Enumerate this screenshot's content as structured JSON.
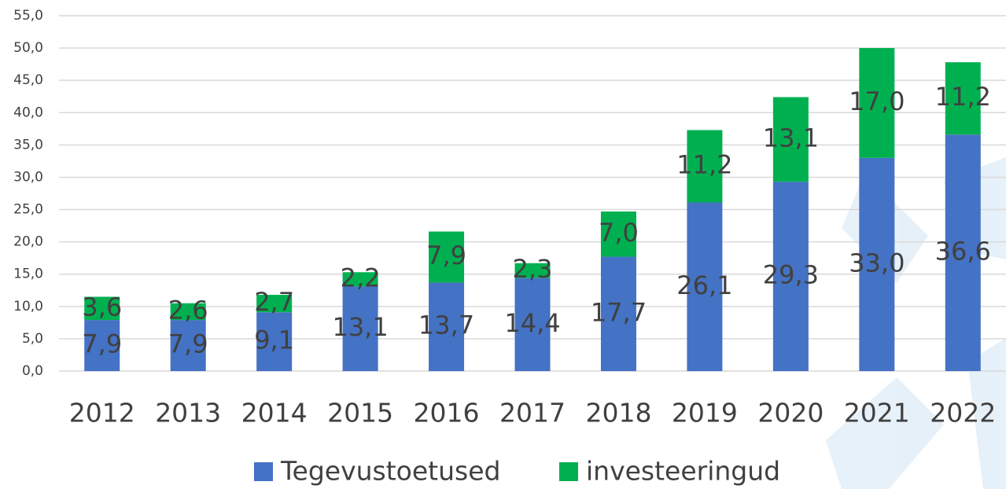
{
  "chart_data": {
    "type": "stacked_bar",
    "categories": [
      "2012",
      "2013",
      "2014",
      "2015",
      "2016",
      "2017",
      "2018",
      "2019",
      "2020",
      "2021",
      "2022"
    ],
    "series": [
      {
        "name": "Tegevustoetused",
        "color": "#4472c4",
        "values": [
          7.9,
          7.9,
          9.1,
          13.1,
          13.7,
          14.4,
          17.7,
          26.1,
          29.3,
          33.0,
          36.6
        ],
        "value_labels": [
          "7,9",
          "7,9",
          "9,1",
          "13,1",
          "13,7",
          "14,4",
          "17,7",
          "26,1",
          "29,3",
          "33,0",
          "36,6"
        ]
      },
      {
        "name": "investeeringud",
        "color": "#00b050",
        "values": [
          3.6,
          2.6,
          2.7,
          2.2,
          7.9,
          2.3,
          7.0,
          11.2,
          13.1,
          17.0,
          11.2
        ],
        "value_labels": [
          "3,6",
          "2,6",
          "2,7",
          "2,2",
          "7,9",
          "2,3",
          "7,0",
          "11,2",
          "13,1",
          "17,0",
          "11,2"
        ]
      }
    ],
    "ylim": [
      0,
      55
    ],
    "yticks": [
      {
        "value": 0,
        "label": "0,0"
      },
      {
        "value": 5,
        "label": "5,0"
      },
      {
        "value": 10,
        "label": "10,0"
      },
      {
        "value": 15,
        "label": "15,0"
      },
      {
        "value": 20,
        "label": "20,0"
      },
      {
        "value": 25,
        "label": "25,0"
      },
      {
        "value": 30,
        "label": "30,0"
      },
      {
        "value": 35,
        "label": "35,0"
      },
      {
        "value": 40,
        "label": "40,0"
      },
      {
        "value": 45,
        "label": "45,0"
      },
      {
        "value": 50,
        "label": "50,0"
      },
      {
        "value": 55,
        "label": "55,0"
      }
    ],
    "grid": true,
    "legend": "bottom"
  }
}
